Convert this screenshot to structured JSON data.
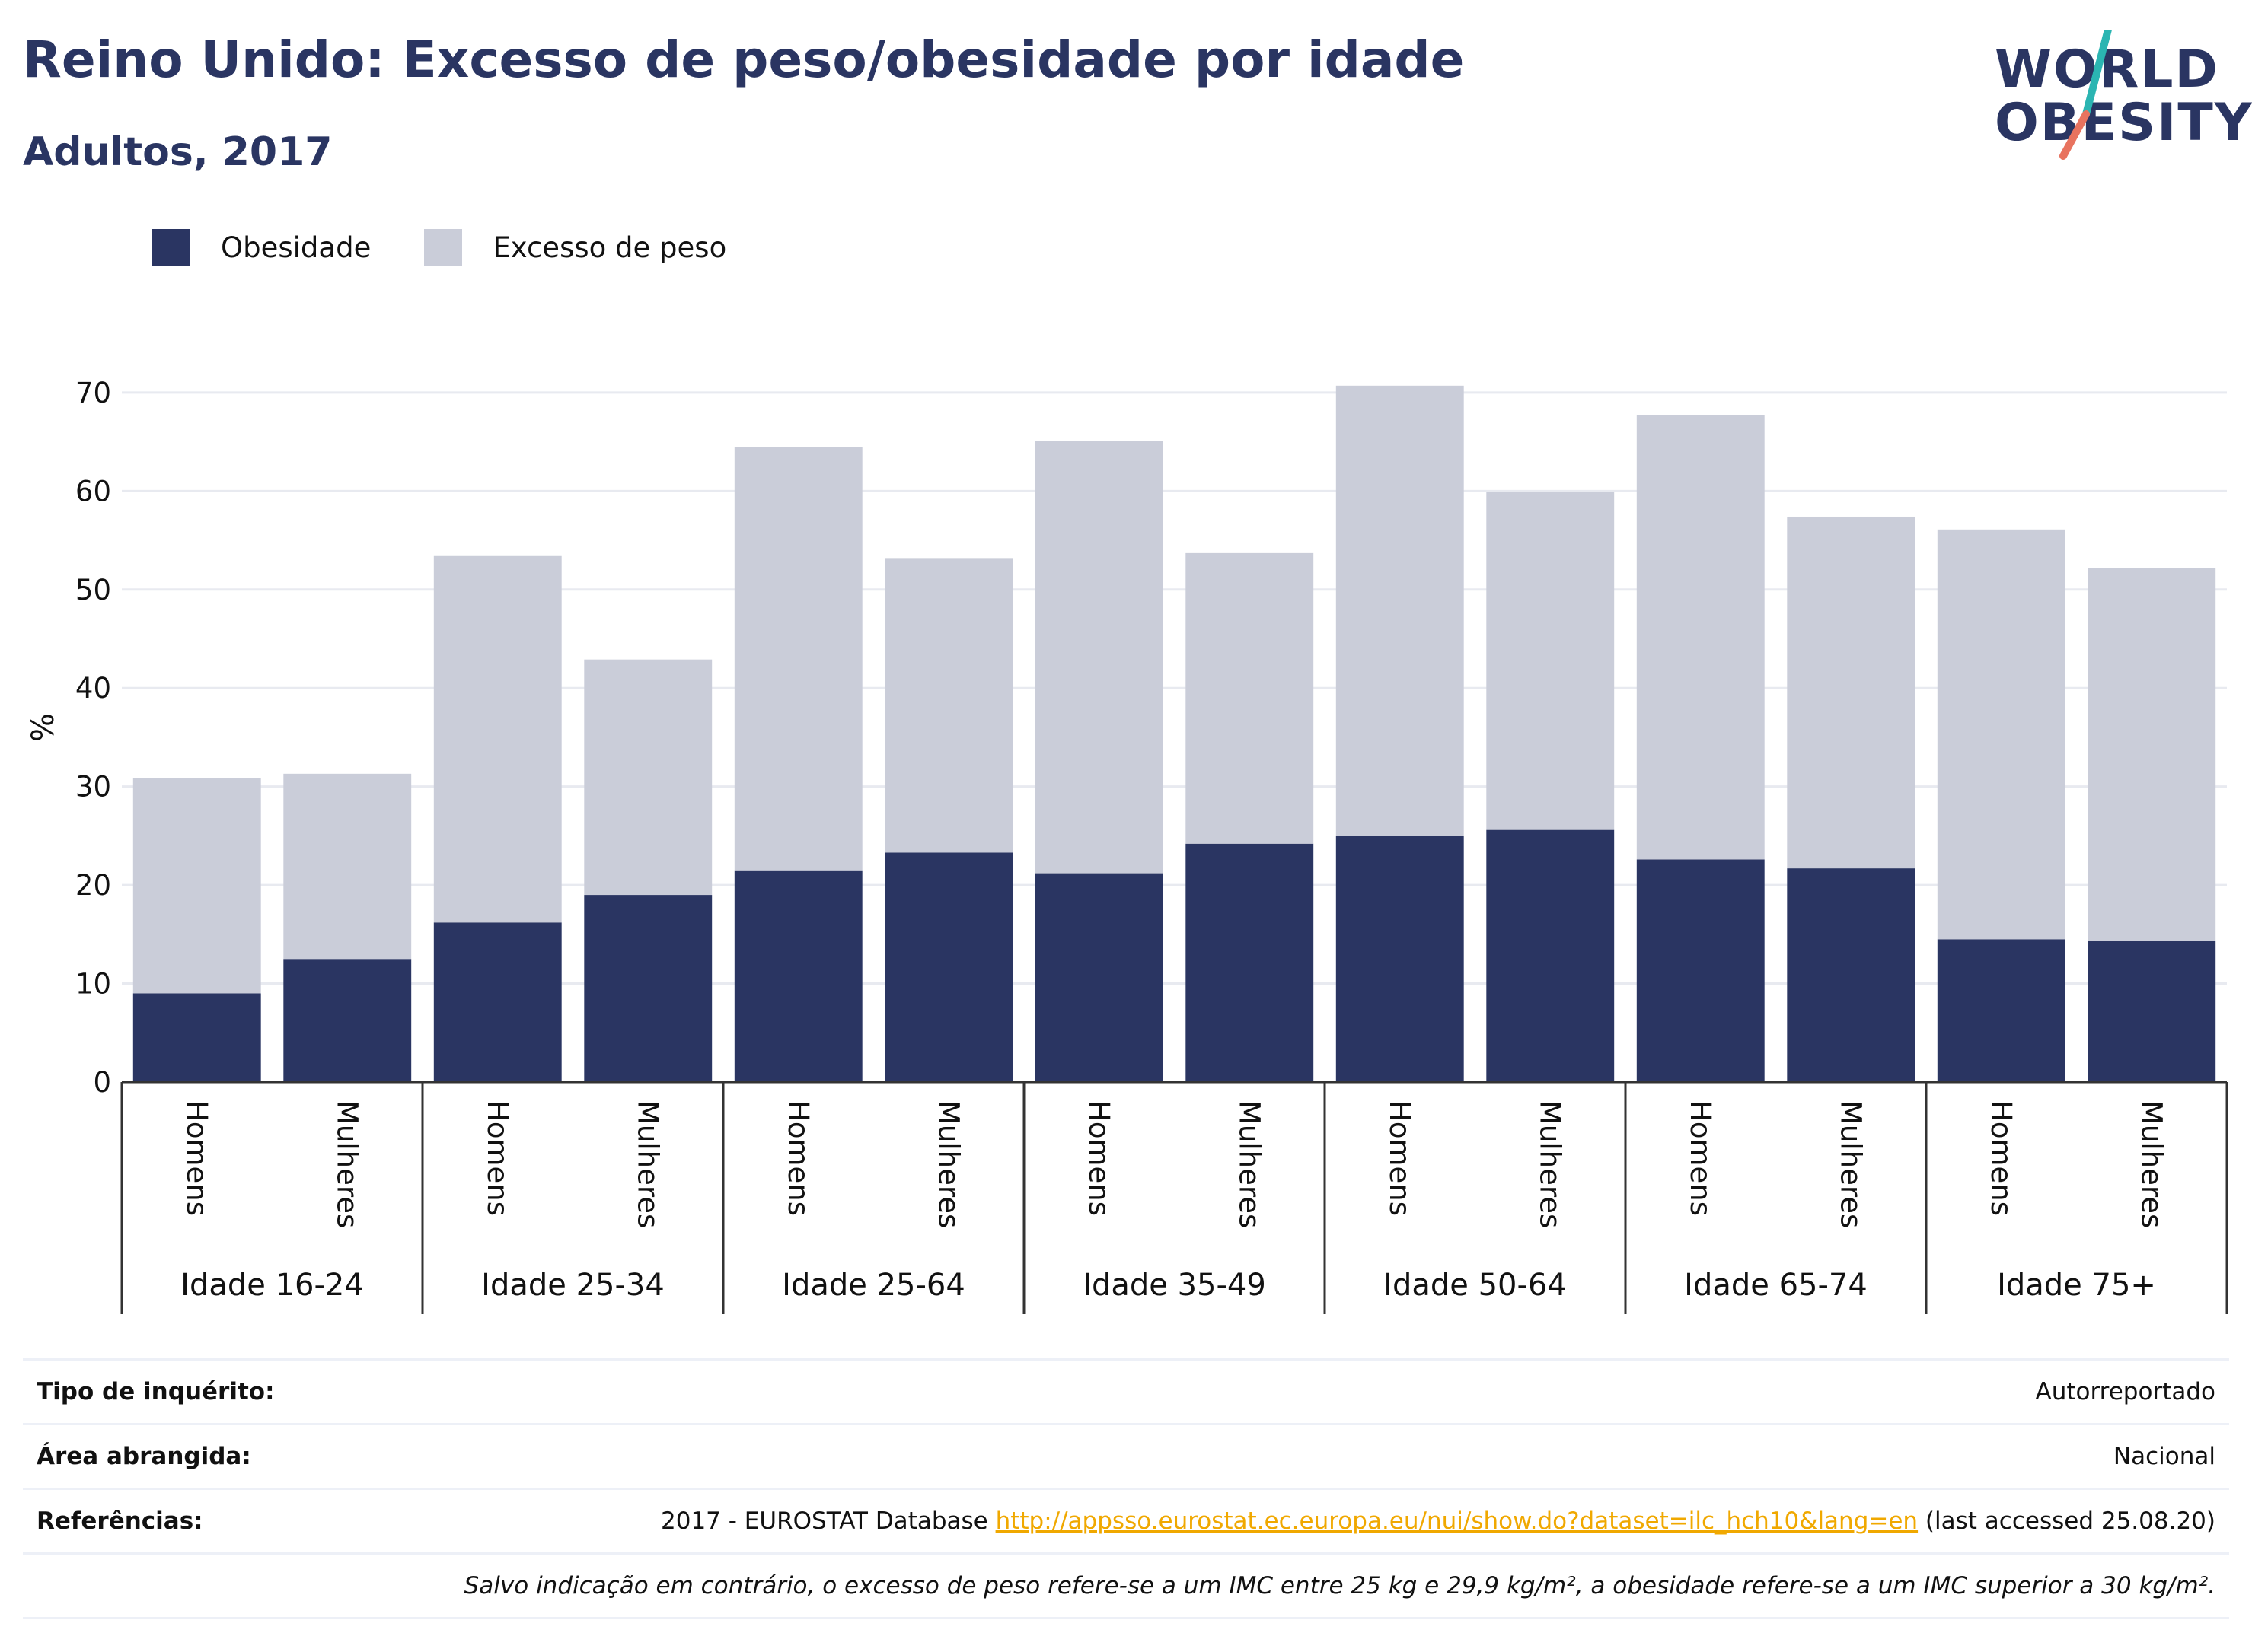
{
  "header": {
    "title": "Reino Unido: Excesso de peso/obesidade por idade",
    "subtitle": "Adultos, 2017"
  },
  "logo": {
    "line1": "WORLD",
    "line2": "OBESITY",
    "slash_colors": [
      "#2bb5b2",
      "#e8735f"
    ]
  },
  "legend": {
    "items": [
      {
        "label": "Obesidade",
        "color": "#2a3562"
      },
      {
        "label": "Excesso de peso",
        "color": "#cacdd9"
      }
    ]
  },
  "chart_data": {
    "type": "bar",
    "stacked": true,
    "ylabel": "%",
    "ylim": [
      0,
      72
    ],
    "yticks": [
      0,
      10,
      20,
      30,
      40,
      50,
      60,
      70
    ],
    "grid": true,
    "legend_position": "top-left",
    "groups": [
      "Idade 16-24",
      "Idade 25-34",
      "Idade 25-64",
      "Idade 35-49",
      "Idade 50-64",
      "Idade 65-74",
      "Idade 75+"
    ],
    "sub_categories": [
      "Homens",
      "Mulheres"
    ],
    "series": [
      {
        "name": "Obesidade",
        "color": "#2a3562",
        "values": [
          9.0,
          12.5,
          16.2,
          19.0,
          21.5,
          23.3,
          21.2,
          24.2,
          25.0,
          25.6,
          22.6,
          21.7,
          14.5,
          14.3
        ]
      },
      {
        "name": "Excesso de peso",
        "color": "#cacdd9",
        "values": [
          21.9,
          18.8,
          37.2,
          23.9,
          43.0,
          29.9,
          43.9,
          29.5,
          45.7,
          34.3,
          45.1,
          35.7,
          41.6,
          37.9
        ]
      }
    ]
  },
  "info": {
    "survey_key": "Tipo de inquérito:",
    "survey_val": "Autorreportado",
    "area_key": "Área abrangida:",
    "area_val": "Nacional",
    "ref_key": "Referências:",
    "ref_prefix": "2017 - EUROSTAT Database ",
    "ref_link": "http://appsso.eurostat.ec.europa.eu/nui/show.do?dataset=ilc_hch10&lang=en",
    "ref_suffix": " (last accessed 25.08.20)",
    "note": "Salvo indicação em contrário, o excesso de peso refere-se a um IMC entre 25 kg e 29,9 kg/m², a obesidade refere-se a um IMC superior a 30 kg/m²."
  }
}
